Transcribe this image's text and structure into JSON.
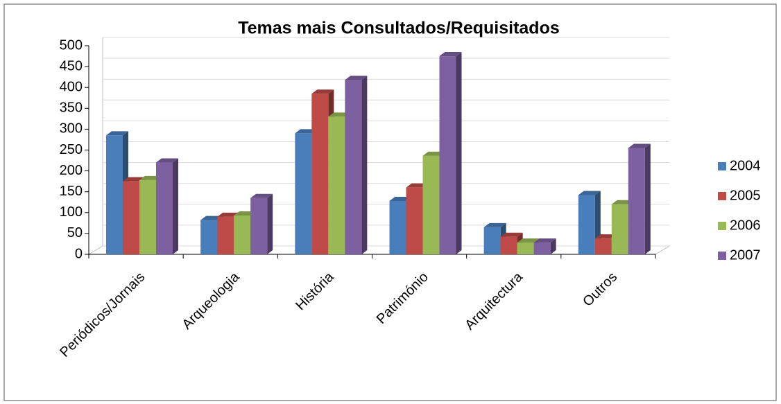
{
  "chart_data": {
    "type": "bar3d",
    "title": "Temas mais Consultados/Requisitados",
    "categories": [
      "Periódicos/Jornais",
      "Arqueologia",
      "História",
      "Património",
      "Arquitectura",
      "Outros"
    ],
    "series": [
      {
        "name": "2004",
        "color": "#4a7ebb",
        "values": [
          285,
          82,
          290,
          128,
          65,
          142
        ]
      },
      {
        "name": "2005",
        "color": "#be4b48",
        "values": [
          175,
          90,
          385,
          160,
          42,
          38
        ]
      },
      {
        "name": "2006",
        "color": "#98b954",
        "values": [
          178,
          93,
          330,
          236,
          28,
          120
        ]
      },
      {
        "name": "2007",
        "color": "#7d60a0",
        "values": [
          220,
          135,
          418,
          475,
          28,
          255
        ]
      }
    ],
    "ylim": [
      0,
      500
    ],
    "yticks": [
      0,
      50,
      100,
      150,
      200,
      250,
      300,
      350,
      400,
      450,
      500
    ],
    "grid": true,
    "legend": "right"
  }
}
